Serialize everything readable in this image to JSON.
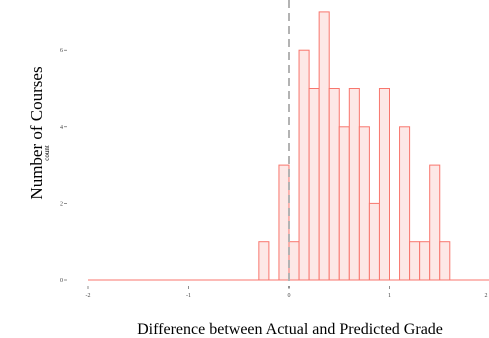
{
  "chart_data": {
    "type": "histogram",
    "xlabel": "Difference between Actual and Predicted Grade",
    "ylabel": "Number of Courses",
    "y_inner_label": "count",
    "x_ticks": [
      -2,
      -1,
      0,
      1,
      2
    ],
    "x_tick_labels": [
      "-2",
      "-1",
      "0",
      "1",
      "2"
    ],
    "y_ticks": [
      0,
      2,
      4,
      6
    ],
    "y_tick_labels": [
      "0",
      "2",
      "4",
      "6"
    ],
    "xlim": [
      -2.05,
      2.0
    ],
    "ylim": [
      0,
      7.3
    ],
    "grid": false,
    "reference_line": {
      "x": 0,
      "style": "dashed",
      "color": "#b3b3b3"
    },
    "bar_fill": "#fde8e6",
    "bar_stroke": "#f8766d",
    "bins": [
      {
        "x_start": -2.0,
        "x_end": -0.3,
        "count": 0
      },
      {
        "x_start": -0.3,
        "x_end": -0.2,
        "count": 1
      },
      {
        "x_start": -0.2,
        "x_end": -0.1,
        "count": 0
      },
      {
        "x_start": -0.1,
        "x_end": 0.0,
        "count": 3
      },
      {
        "x_start": 0.0,
        "x_end": 0.1,
        "count": 1
      },
      {
        "x_start": 0.1,
        "x_end": 0.2,
        "count": 6
      },
      {
        "x_start": 0.2,
        "x_end": 0.3,
        "count": 5
      },
      {
        "x_start": 0.3,
        "x_end": 0.4,
        "count": 7
      },
      {
        "x_start": 0.4,
        "x_end": 0.5,
        "count": 5
      },
      {
        "x_start": 0.5,
        "x_end": 0.6,
        "count": 4
      },
      {
        "x_start": 0.6,
        "x_end": 0.7,
        "count": 5
      },
      {
        "x_start": 0.7,
        "x_end": 0.8,
        "count": 4
      },
      {
        "x_start": 0.8,
        "x_end": 0.9,
        "count": 2
      },
      {
        "x_start": 0.9,
        "x_end": 1.0,
        "count": 5
      },
      {
        "x_start": 1.0,
        "x_end": 1.1,
        "count": 0
      },
      {
        "x_start": 1.1,
        "x_end": 1.2,
        "count": 4
      },
      {
        "x_start": 1.2,
        "x_end": 1.3,
        "count": 1
      },
      {
        "x_start": 1.3,
        "x_end": 1.4,
        "count": 1
      },
      {
        "x_start": 1.4,
        "x_end": 1.5,
        "count": 3
      },
      {
        "x_start": 1.5,
        "x_end": 1.6,
        "count": 1
      },
      {
        "x_start": 1.6,
        "x_end": 2.0,
        "count": 0
      }
    ]
  }
}
